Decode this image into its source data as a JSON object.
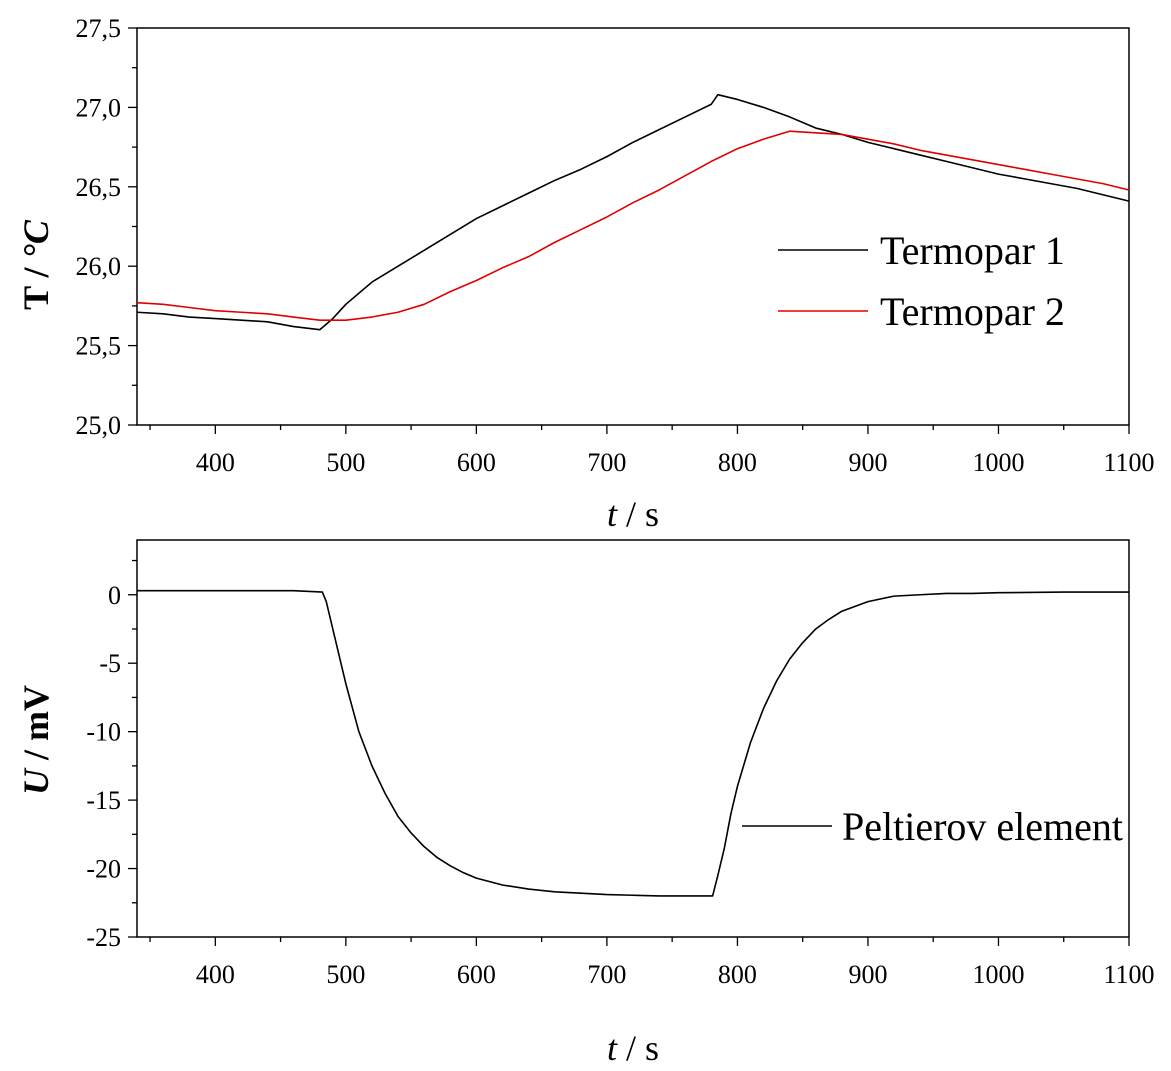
{
  "chart_data": [
    {
      "type": "line",
      "xlabel": {
        "var": "t",
        "unit": " / s"
      },
      "ylabel": {
        "var": "T",
        "sep": " / ",
        "unit": "°C"
      },
      "xlim": [
        340,
        1100
      ],
      "ylim": [
        25.0,
        27.5
      ],
      "xticks": [
        400,
        500,
        600,
        700,
        800,
        900,
        1000,
        1100
      ],
      "xtick_labels": [
        "400",
        "500",
        "600",
        "700",
        "800",
        "900",
        "1000",
        "1100"
      ],
      "yticks": [
        25.0,
        25.5,
        26.0,
        26.5,
        27.0,
        27.5
      ],
      "ytick_labels": [
        "25,0",
        "25,5",
        "26,0",
        "26,5",
        "27,0",
        "27,5"
      ],
      "grid": false,
      "legend_position": "right",
      "series": [
        {
          "name": "Termopar 1",
          "color": "#000000",
          "x": [
            340,
            360,
            380,
            400,
            420,
            440,
            460,
            480,
            490,
            500,
            520,
            540,
            560,
            580,
            600,
            620,
            640,
            660,
            680,
            700,
            720,
            740,
            760,
            780,
            785,
            800,
            820,
            840,
            860,
            880,
            900,
            920,
            940,
            960,
            980,
            1000,
            1020,
            1040,
            1060,
            1080,
            1100
          ],
          "y": [
            25.71,
            25.7,
            25.68,
            25.67,
            25.66,
            25.65,
            25.62,
            25.6,
            25.67,
            25.76,
            25.9,
            26.0,
            26.1,
            26.2,
            26.3,
            26.38,
            26.46,
            26.54,
            26.61,
            26.69,
            26.78,
            26.86,
            26.94,
            27.02,
            27.08,
            27.05,
            27.0,
            26.94,
            26.87,
            26.83,
            26.78,
            26.74,
            26.7,
            26.66,
            26.62,
            26.58,
            26.55,
            26.52,
            26.49,
            26.45,
            26.41
          ]
        },
        {
          "name": "Termopar 2",
          "color": "#e00000",
          "x": [
            340,
            360,
            380,
            400,
            420,
            440,
            460,
            480,
            500,
            520,
            540,
            560,
            580,
            600,
            620,
            640,
            660,
            680,
            700,
            720,
            740,
            760,
            780,
            800,
            820,
            840,
            860,
            880,
            900,
            920,
            940,
            960,
            980,
            1000,
            1020,
            1040,
            1060,
            1080,
            1100
          ],
          "y": [
            25.77,
            25.76,
            25.74,
            25.72,
            25.71,
            25.7,
            25.68,
            25.66,
            25.66,
            25.68,
            25.71,
            25.76,
            25.84,
            25.91,
            25.99,
            26.06,
            26.15,
            26.23,
            26.31,
            26.4,
            26.48,
            26.57,
            26.66,
            26.74,
            26.8,
            26.85,
            26.84,
            26.83,
            26.8,
            26.77,
            26.73,
            26.7,
            26.67,
            26.64,
            26.61,
            26.58,
            26.55,
            26.52,
            26.48
          ]
        }
      ]
    },
    {
      "type": "line",
      "xlabel": {
        "var": "t",
        "unit": " / s"
      },
      "ylabel": {
        "var": "U",
        "unit": " / mV"
      },
      "xlim": [
        340,
        1100
      ],
      "ylim": [
        -25,
        4
      ],
      "xticks": [
        400,
        500,
        600,
        700,
        800,
        900,
        1000,
        1100
      ],
      "xtick_labels": [
        "400",
        "500",
        "600",
        "700",
        "800",
        "900",
        "1000",
        "1100"
      ],
      "yticks": [
        -25,
        -20,
        -15,
        -10,
        -5,
        0
      ],
      "ytick_labels": [
        "-25",
        "-20",
        "-15",
        "-10",
        "-5",
        "0"
      ],
      "grid": false,
      "legend_position": "right",
      "series": [
        {
          "name": "Peltierov element",
          "color": "#000000",
          "x": [
            340,
            400,
            460,
            482,
            485,
            490,
            500,
            510,
            520,
            530,
            540,
            550,
            560,
            570,
            580,
            590,
            600,
            620,
            640,
            660,
            680,
            700,
            720,
            740,
            760,
            781,
            785,
            790,
            795,
            800,
            810,
            820,
            830,
            840,
            850,
            860,
            870,
            880,
            900,
            920,
            940,
            960,
            980,
            1000,
            1050,
            1100
          ],
          "y": [
            0.3,
            0.3,
            0.3,
            0.2,
            -0.5,
            -2.5,
            -6.5,
            -10.0,
            -12.5,
            -14.5,
            -16.2,
            -17.4,
            -18.4,
            -19.2,
            -19.8,
            -20.3,
            -20.7,
            -21.2,
            -21.5,
            -21.7,
            -21.8,
            -21.9,
            -21.95,
            -22.0,
            -22.0,
            -22.0,
            -20.5,
            -18.5,
            -16.0,
            -14.0,
            -10.8,
            -8.3,
            -6.3,
            -4.7,
            -3.5,
            -2.5,
            -1.8,
            -1.2,
            -0.5,
            -0.1,
            0.0,
            0.1,
            0.1,
            0.15,
            0.2,
            0.2
          ]
        }
      ]
    }
  ]
}
